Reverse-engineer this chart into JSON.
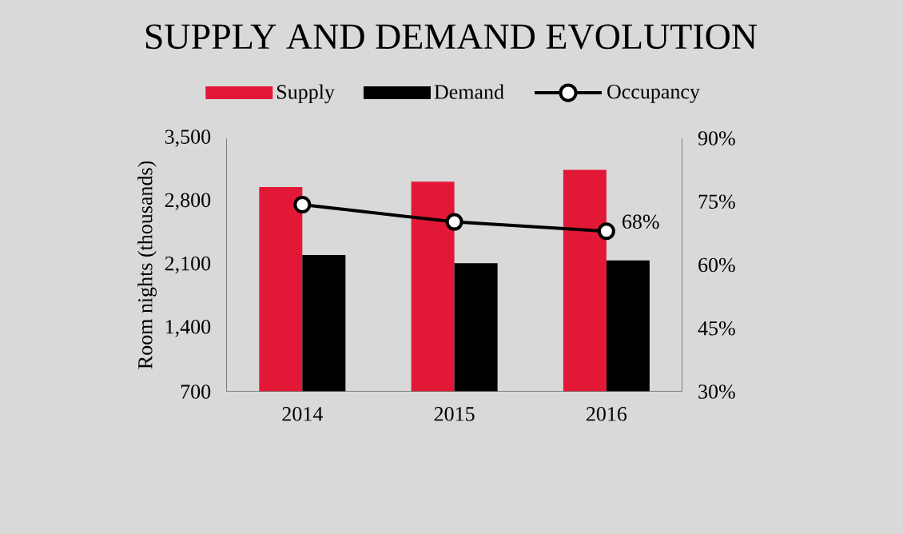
{
  "chart_data": {
    "type": "bar",
    "title": "SUPPLY AND DEMAND EVOLUTION",
    "ylabel": "Room nights (thousands)",
    "categories": [
      "2014",
      "2015",
      "2016"
    ],
    "series": [
      {
        "name": "Supply",
        "color": "#e31837",
        "values": [
          2960,
          3020,
          3150
        ]
      },
      {
        "name": "Demand",
        "color": "#000000",
        "values": [
          2210,
          2120,
          2150
        ]
      },
      {
        "name": "Occupancy",
        "type": "line",
        "axis": "y2",
        "color": "#000000",
        "values": [
          74.3,
          70.2,
          68
        ],
        "value_labels": [
          null,
          null,
          "68%"
        ]
      }
    ],
    "ylim": [
      700,
      3500
    ],
    "yticks": [
      {
        "value": 700,
        "label": "700"
      },
      {
        "value": 1400,
        "label": "1,400"
      },
      {
        "value": 2100,
        "label": "2,100"
      },
      {
        "value": 2800,
        "label": "2,800"
      },
      {
        "value": 3500,
        "label": "3,500"
      }
    ],
    "y2lim": [
      30,
      90
    ],
    "y2ticks": [
      {
        "value": 30,
        "label": "30%"
      },
      {
        "value": 45,
        "label": "45%"
      },
      {
        "value": 60,
        "label": "60%"
      },
      {
        "value": 75,
        "label": "75%"
      },
      {
        "value": 90,
        "label": "90%"
      }
    ],
    "legend": "top",
    "marker": "circle"
  }
}
